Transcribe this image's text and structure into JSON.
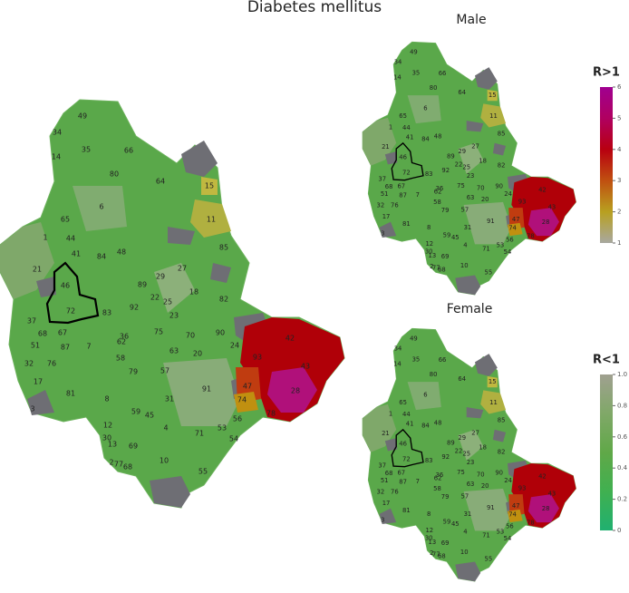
{
  "title": "Diabetes mellitus",
  "maps": {
    "main": {
      "labels": [
        "49",
        "34",
        "14",
        "35",
        "66",
        "80",
        "64",
        "15",
        "6",
        "65",
        "11",
        "1",
        "44",
        "85",
        "41",
        "84",
        "48",
        "21",
        "27",
        "29",
        "46",
        "89",
        "18",
        "82",
        "22",
        "25",
        "72",
        "92",
        "83",
        "23",
        "37",
        "67",
        "68",
        "75",
        "70",
        "90",
        "62",
        "36",
        "51",
        "87",
        "7",
        "63",
        "20",
        "24",
        "42",
        "58",
        "93",
        "32",
        "76",
        "43",
        "79",
        "57",
        "17",
        "47",
        "91",
        "81",
        "28",
        "8",
        "31",
        "74",
        "59",
        "45",
        "56",
        "3",
        "78",
        "12",
        "4",
        "71",
        "53",
        "30",
        "13",
        "69",
        "54",
        "10",
        "2",
        "77",
        "68",
        "55"
      ]
    },
    "male": {
      "title": "Male",
      "labels": [
        "49",
        "34",
        "14",
        "35",
        "66",
        "80",
        "64",
        "15",
        "6",
        "65",
        "11",
        "1",
        "44",
        "85",
        "41",
        "84",
        "48",
        "21",
        "27",
        "29",
        "46",
        "89",
        "18",
        "82",
        "22",
        "25",
        "72",
        "92",
        "83",
        "23",
        "37",
        "67",
        "68",
        "75",
        "70",
        "90",
        "62",
        "36",
        "51",
        "87",
        "7",
        "63",
        "20",
        "24",
        "42",
        "58",
        "93",
        "32",
        "76",
        "43",
        "79",
        "57",
        "17",
        "47",
        "91",
        "81",
        "28",
        "8",
        "31",
        "74",
        "59",
        "45",
        "56",
        "3",
        "78",
        "12",
        "4",
        "71",
        "53",
        "30",
        "13",
        "69",
        "54",
        "10",
        "2",
        "77",
        "68",
        "55"
      ]
    },
    "female": {
      "title": "Female",
      "labels": [
        "49",
        "34",
        "14",
        "35",
        "66",
        "80",
        "64",
        "15",
        "6",
        "65",
        "11",
        "1",
        "44",
        "85",
        "41",
        "84",
        "48",
        "21",
        "27",
        "29",
        "46",
        "89",
        "18",
        "82",
        "22",
        "25",
        "72",
        "92",
        "83",
        "23",
        "37",
        "67",
        "68",
        "75",
        "70",
        "90",
        "62",
        "36",
        "51",
        "87",
        "7",
        "63",
        "20",
        "24",
        "42",
        "58",
        "93",
        "32",
        "76",
        "43",
        "79",
        "57",
        "17",
        "47",
        "91",
        "81",
        "28",
        "8",
        "31",
        "74",
        "59",
        "45",
        "56",
        "3",
        "78",
        "12",
        "4",
        "71",
        "53",
        "30",
        "13",
        "69",
        "54",
        "10",
        "2",
        "77",
        "68",
        "55"
      ]
    }
  },
  "legends": [
    {
      "title": "R>1",
      "range": [
        1,
        6
      ],
      "ticks": [
        1,
        2,
        3,
        4,
        5,
        6
      ],
      "colors": [
        "#a8a8a0",
        "#b8a020",
        "#c05010",
        "#b80010",
        "#b00060",
        "#a00090"
      ]
    },
    {
      "title": "R<1",
      "range": [
        0,
        1
      ],
      "ticks": [
        0,
        0.2,
        0.4,
        0.6,
        0.8,
        {
          "value": 1,
          "label": "1.0"
        }
      ],
      "colors": [
        "#20b070",
        "#40b050",
        "#60a848",
        "#80a868",
        "#a0a090"
      ]
    }
  ]
}
